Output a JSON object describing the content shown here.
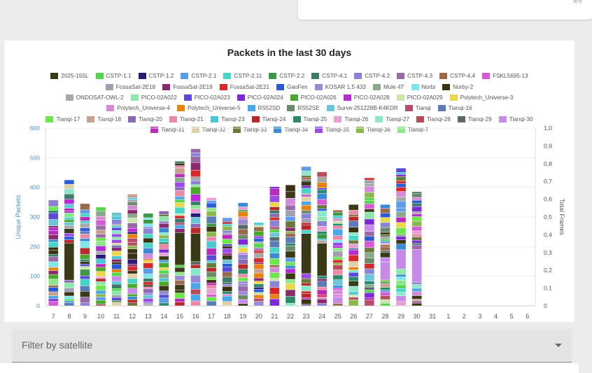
{
  "header": {
    "corner_text": "lev"
  },
  "filter": {
    "placeholder": "Filter by satellite",
    "arrow_icon": "caret-down-icon"
  },
  "chart_data": {
    "type": "bar",
    "stacked": true,
    "title": "Packets in the last 30 days",
    "ylabel": "Unique Packets",
    "y2label": "Total Frames",
    "ylim": [
      0,
      600
    ],
    "y2lim": [
      0,
      1
    ],
    "yticks": [
      "0",
      "100",
      "200",
      "300",
      "400",
      "500",
      "600"
    ],
    "y2ticks": [
      "0",
      "0,1",
      "0,2",
      "0,3",
      "0,4",
      "0,5",
      "0,6",
      "0,7",
      "0,8",
      "0,9",
      "1,0"
    ],
    "legend_position": "top",
    "categories": [
      "7",
      "8",
      "9",
      "10",
      "11",
      "12",
      "13",
      "14",
      "15",
      "16",
      "17",
      "18",
      "19",
      "20",
      "21",
      "22",
      "23",
      "24",
      "25",
      "26",
      "27",
      "28",
      "29",
      "30",
      "31",
      "1",
      "2",
      "3",
      "4",
      "5",
      "6"
    ],
    "totals": [
      357,
      425,
      345,
      333,
      315,
      377,
      312,
      320,
      488,
      530,
      365,
      297,
      348,
      281,
      402,
      408,
      470,
      452,
      323,
      342,
      432,
      342,
      465,
      385,
      0,
      0,
      0,
      0,
      0,
      0,
      0
    ],
    "dominant": [
      {
        "day": "8",
        "series": "2025-155L",
        "value": 125
      },
      {
        "day": "15",
        "series": "2025-155L",
        "value": 110
      },
      {
        "day": "16",
        "series": "2025-155L",
        "value": 95
      },
      {
        "day": "23",
        "series": "2025-155L",
        "value": 135
      },
      {
        "day": "24",
        "series": "2025-155L",
        "value": 110
      },
      {
        "day": "28",
        "series": "Tianqi-30",
        "value": 60
      },
      {
        "day": "29",
        "series": "Tianqi-30",
        "value": 65
      },
      {
        "day": "30",
        "series": "Tianqi-30",
        "value": 110
      }
    ],
    "series": [
      {
        "name": "2025-155L",
        "color": "#3b3a18"
      },
      {
        "name": "CSTP-1.1",
        "color": "#52d64a"
      },
      {
        "name": "CSTP-1.2",
        "color": "#2b1a7a"
      },
      {
        "name": "CSTP-2.1",
        "color": "#5d9ce8"
      },
      {
        "name": "CSTP-2.11",
        "color": "#45d6c8"
      },
      {
        "name": "CSTP-2.2",
        "color": "#3c9a46"
      },
      {
        "name": "CSTP-4.1",
        "color": "#3e7a6a"
      },
      {
        "name": "CSTP-4.2",
        "color": "#8a82d6"
      },
      {
        "name": "CSTP-4.3",
        "color": "#9a6aa8"
      },
      {
        "name": "CSTP-4.4",
        "color": "#9a6a4a"
      },
      {
        "name": "FSKL5695-13",
        "color": "#d65ad6"
      },
      {
        "name": "FossaSat-2E18",
        "color": "#a0a0b0"
      },
      {
        "name": "FossaSat-2E19",
        "color": "#8a2a6a"
      },
      {
        "name": "FossaSat-2E21",
        "color": "#d62a2a"
      },
      {
        "name": "GaoFen",
        "color": "#2a5ad6"
      },
      {
        "name": "KOSAR 1,5 433",
        "color": "#9a8ad6"
      },
      {
        "name": "Mule 4T",
        "color": "#8aa88a"
      },
      {
        "name": "Norbi",
        "color": "#7ee8e8"
      },
      {
        "name": "Norby-2",
        "color": "#3a3210"
      },
      {
        "name": "ONDOSAT-OWL-2",
        "color": "#a8a8a8"
      },
      {
        "name": "PICO-02A022",
        "color": "#8ae8a8"
      },
      {
        "name": "PICO-02A023",
        "color": "#5a4ad6"
      },
      {
        "name": "PICO-02A024",
        "color": "#7a2ad6"
      },
      {
        "name": "PICO-02A026",
        "color": "#4aa82a"
      },
      {
        "name": "PICO-02A028",
        "color": "#b82ad6"
      },
      {
        "name": "PICO-02A029",
        "color": "#c8e8a8"
      },
      {
        "name": "Polytech_Universe-3",
        "color": "#e8d84a"
      },
      {
        "name": "Polytech_Universe-4",
        "color": "#d68ad6"
      },
      {
        "name": "Polytech_Universe-5",
        "color": "#e8820a"
      },
      {
        "name": "RS52SD",
        "color": "#4aa8e8"
      },
      {
        "name": "RS52SE",
        "color": "#6a8a6a"
      },
      {
        "name": "Surve-251228B-K4KDR",
        "color": "#6ac8d6"
      },
      {
        "name": "Tianqi",
        "color": "#b84a6a"
      },
      {
        "name": "Tianqi-16",
        "color": "#5a7ab8"
      },
      {
        "name": "Tianqi-17",
        "color": "#6ae84a"
      },
      {
        "name": "Tianqi-18",
        "color": "#c8a090"
      },
      {
        "name": "Tianqi-20",
        "color": "#8a6ab8"
      },
      {
        "name": "Tianqi-21",
        "color": "#e88aa8"
      },
      {
        "name": "Tianqi-23",
        "color": "#4ac8d6"
      },
      {
        "name": "Tianqi-24",
        "color": "#b82a2a"
      },
      {
        "name": "Tianqi-25",
        "color": "#2a8a6a"
      },
      {
        "name": "Tianqi-26",
        "color": "#e8a0d0"
      },
      {
        "name": "Tianqi-27",
        "color": "#8ae8c8"
      },
      {
        "name": "Tianqi-28",
        "color": "#b84a5a"
      },
      {
        "name": "Tianqi-29",
        "color": "#5a6a6a"
      },
      {
        "name": "Tianqi-30",
        "color": "#c88ae8"
      },
      {
        "name": "Tianqi-31",
        "color": "#b82ab8"
      },
      {
        "name": "Tianqi-32",
        "color": "#e0d0a8"
      },
      {
        "name": "Tianqi-33",
        "color": "#6a7a3a"
      },
      {
        "name": "Tianqi-34",
        "color": "#3a8ad6"
      },
      {
        "name": "Tianqi-35",
        "color": "#9a4ae8"
      },
      {
        "name": "Tianqi-36",
        "color": "#8ab84a"
      },
      {
        "name": "Tianqi-7",
        "color": "#8ae88a"
      }
    ]
  }
}
